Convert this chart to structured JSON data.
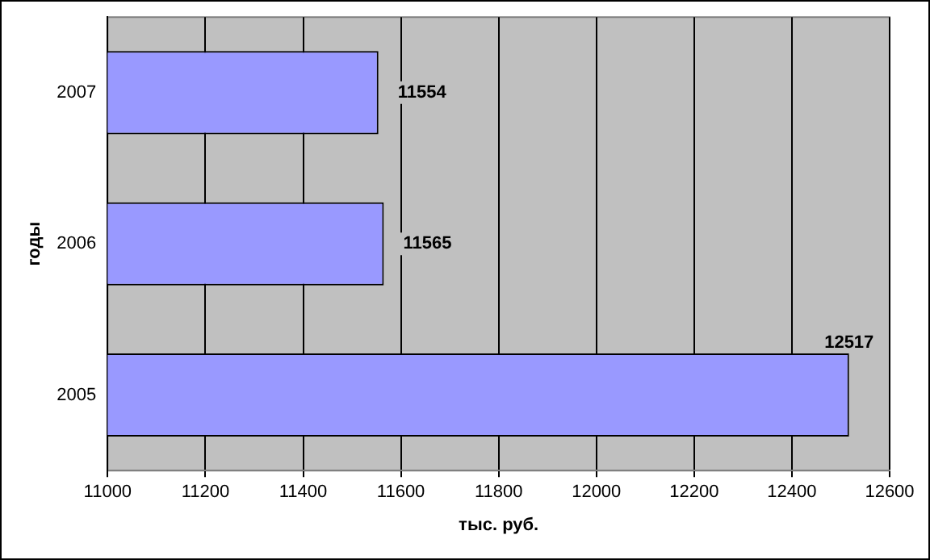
{
  "chart_data": {
    "type": "bar",
    "orientation": "horizontal",
    "categories": [
      "2007",
      "2006",
      "2005"
    ],
    "values": [
      11554,
      11565,
      12517
    ],
    "color": "#9999ff",
    "xlim": [
      11000,
      12600
    ],
    "xticks": [
      11000,
      11200,
      11400,
      11600,
      11800,
      12000,
      12200,
      12400,
      12600
    ],
    "xlabel": "тыс. руб.",
    "ylabel": "годы",
    "grid": "x",
    "legend": false,
    "data_labels": true
  }
}
